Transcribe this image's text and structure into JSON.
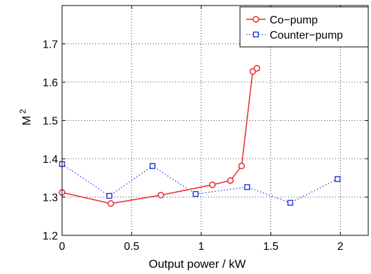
{
  "chart_data": {
    "type": "line",
    "xlabel": "Output power / kW",
    "ylabel": "M",
    "ylabel_superscript": "2",
    "xlim": [
      0,
      2.2
    ],
    "ylim": [
      1.2,
      1.8
    ],
    "xticks": [
      0,
      0.5,
      1,
      1.5,
      2
    ],
    "xtick_labels": [
      "0",
      "0.5",
      "1",
      "1.5",
      "2"
    ],
    "yticks": [
      1.2,
      1.3,
      1.4,
      1.5,
      1.6,
      1.7
    ],
    "ytick_labels": [
      "1.2",
      "1.3",
      "1.4",
      "1.5",
      "1.6",
      "1.7"
    ],
    "grid": true,
    "legend_position": "top-right",
    "series": [
      {
        "name": "Co−pump",
        "color": "#e8262a",
        "line_style": "solid",
        "marker": "circle",
        "x": [
          0.0,
          0.35,
          0.71,
          1.08,
          1.21,
          1.29,
          1.37,
          1.4
        ],
        "y": [
          1.312,
          1.283,
          1.305,
          1.332,
          1.343,
          1.381,
          1.628,
          1.636
        ]
      },
      {
        "name": "Counter−pump",
        "color": "#2b3bd6",
        "line_style": "dotted",
        "marker": "square",
        "x": [
          0.0,
          0.34,
          0.65,
          0.96,
          1.33,
          1.64,
          1.98
        ],
        "y": [
          1.386,
          1.303,
          1.381,
          1.308,
          1.326,
          1.285,
          1.347
        ]
      }
    ]
  }
}
